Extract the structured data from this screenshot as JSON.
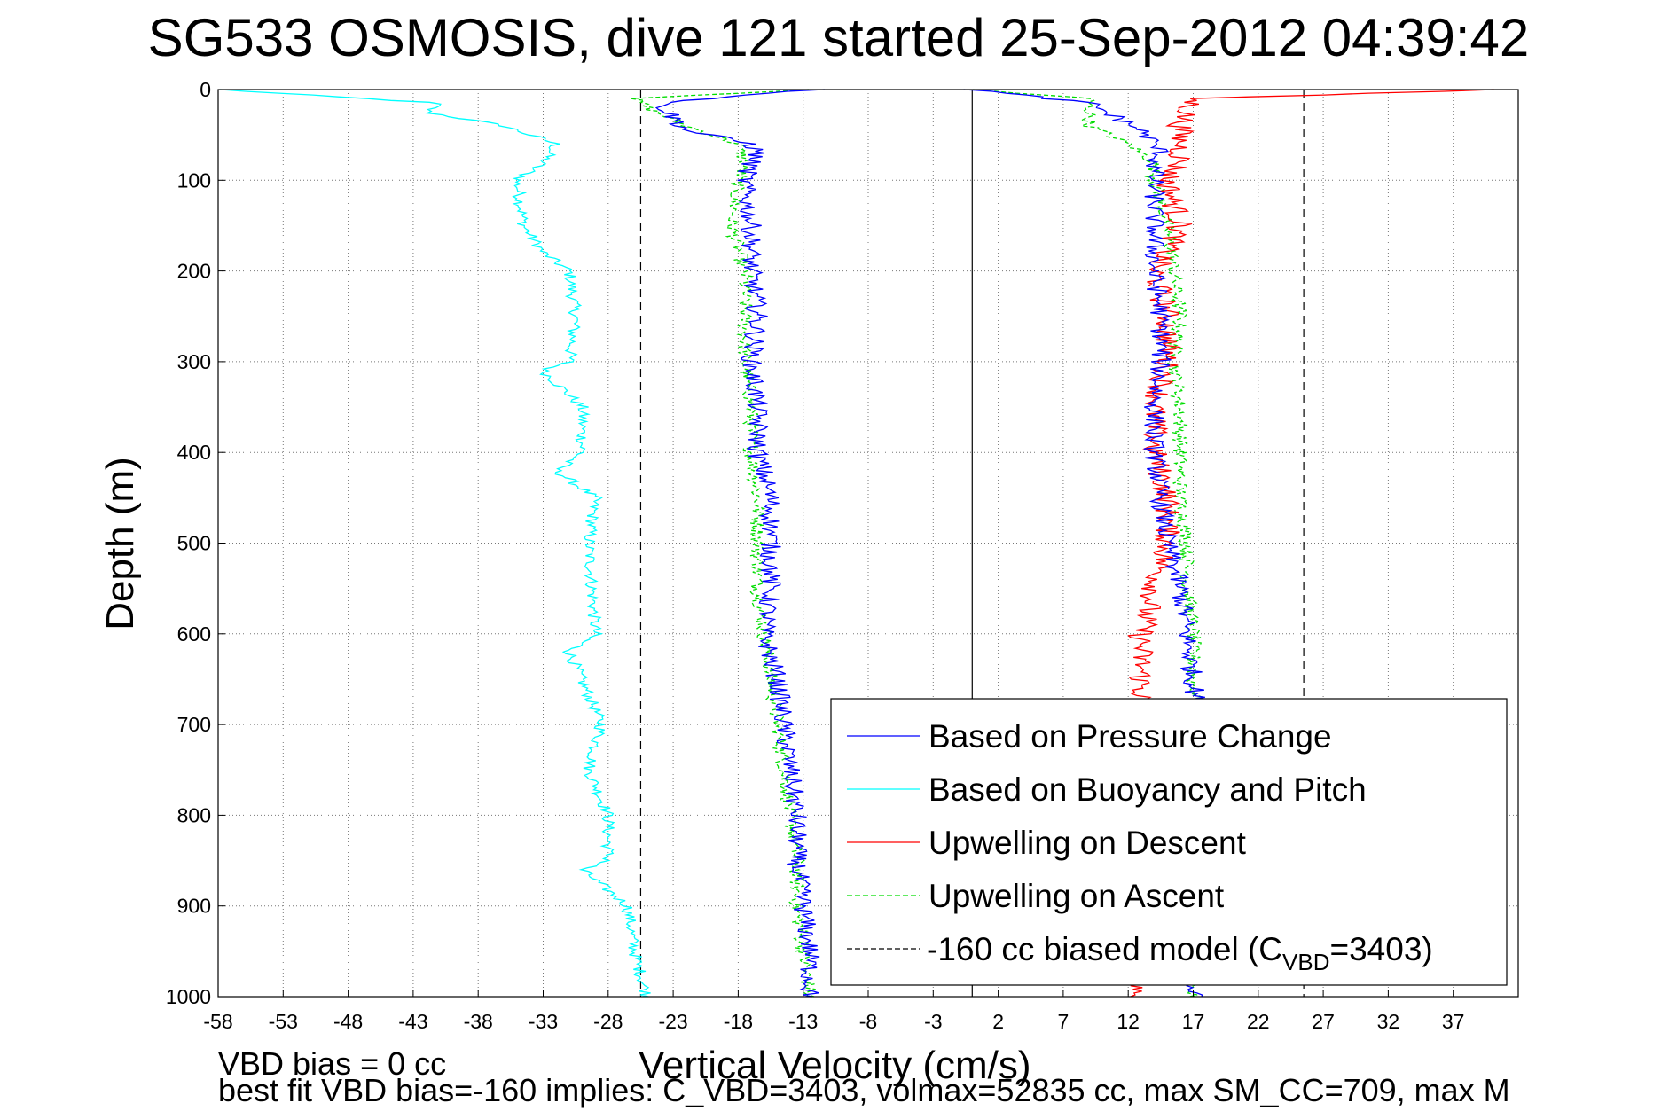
{
  "title": "SG533 OSMOSIS, dive 121 started 25-Sep-2012 04:39:42",
  "chart_data": {
    "type": "line",
    "xlabel": "Vertical Velocity (cm/s)",
    "ylabel": "Depth (m)",
    "xlim": [
      -58,
      42
    ],
    "ylim": [
      0,
      1000
    ],
    "y_reversed": true,
    "grid": true,
    "legend_position": "bottom-right",
    "x_ticks": [
      "-58",
      "-53",
      "-48",
      "-43",
      "-38",
      "-33",
      "-28",
      "-23",
      "-18",
      "-13",
      "-8",
      "-3",
      "2",
      "7",
      "12",
      "17",
      "22",
      "27",
      "32",
      "37"
    ],
    "y_ticks": [
      "0",
      "100",
      "200",
      "300",
      "400",
      "500",
      "600",
      "700",
      "800",
      "900",
      "1000"
    ],
    "zero_line_x": 0,
    "model_lines_x": [
      -25.5,
      25.5
    ],
    "series": [
      {
        "name": "Based on Pressure Change",
        "color": "#0000ff",
        "style": "solid",
        "depth": [
          0,
          15,
          30,
          45,
          60,
          70,
          80,
          100,
          150,
          200,
          250,
          300,
          350,
          400,
          450,
          500,
          550,
          600,
          650,
          700,
          750,
          800,
          850,
          900,
          950,
          1000
        ],
        "descent": [
          -12,
          -24,
          -23,
          -22,
          -17,
          -16.5,
          -17,
          -17.5,
          -17,
          -17,
          -16.5,
          -17,
          -16.5,
          -16.5,
          -15.5,
          -15.5,
          -15.5,
          -16,
          -15,
          -14.5,
          -14,
          -13.5,
          -13.5,
          -13,
          -12.5,
          -12.5
        ],
        "ascent": [
          0,
          9,
          11,
          13,
          14,
          14.5,
          14,
          14,
          14,
          14,
          14.5,
          14.5,
          14,
          14,
          14.5,
          15,
          16,
          16.5,
          17,
          17.5,
          17.5,
          17.5,
          17.5,
          17,
          17,
          17
        ]
      },
      {
        "name": "Based on Buoyancy and Pitch",
        "color": "#00ffff",
        "style": "solid",
        "depth": [
          0,
          15,
          25,
          40,
          60,
          80,
          100,
          150,
          180,
          200,
          250,
          300,
          310,
          350,
          400,
          420,
          450,
          500,
          600,
          620,
          700,
          750,
          800,
          850,
          860,
          900,
          950,
          1000
        ],
        "values": [
          -58,
          -41,
          -42,
          -36,
          -32,
          -33,
          -35,
          -34.5,
          -33,
          -31,
          -30.5,
          -31,
          -33,
          -30,
          -30,
          -32,
          -29,
          -29.5,
          -29,
          -31,
          -28.5,
          -29.5,
          -28,
          -28,
          -30,
          -26.5,
          -26,
          -25
        ]
      },
      {
        "name": "Upwelling on Descent",
        "color": "#ff0000",
        "style": "solid",
        "depth": [
          0,
          10,
          40,
          80,
          100,
          150,
          200,
          250,
          300,
          350,
          400,
          450,
          500,
          550,
          600,
          650,
          700,
          800,
          900,
          950,
          1000
        ],
        "values": [
          40,
          17,
          16,
          16,
          15,
          16,
          14,
          15,
          15,
          14,
          14,
          15,
          15,
          14,
          13,
          13,
          13,
          13,
          13,
          13,
          13
        ]
      },
      {
        "name": "Upwelling on Ascent",
        "color": "#00dd00",
        "style": "dashed",
        "depth": [
          0,
          10,
          20,
          40,
          60,
          80,
          100,
          150,
          200,
          250,
          300,
          350,
          400,
          450,
          500,
          550,
          600,
          650,
          700,
          750,
          800,
          850,
          900,
          950,
          1000
        ],
        "descent": [
          -12,
          -26,
          -25,
          -22,
          -18,
          -17.5,
          -18,
          -18.5,
          -17.5,
          -17.5,
          -17.5,
          -17,
          -17,
          -16.5,
          -16.5,
          -16.5,
          -16,
          -15.5,
          -15,
          -14.5,
          -14,
          -13.5,
          -13.5,
          -13,
          -12.5
        ],
        "ascent": [
          0,
          9,
          9,
          9,
          12,
          14,
          14,
          15,
          15.5,
          16,
          15.5,
          16,
          16,
          16,
          16.5,
          16.5,
          17,
          17,
          17.5,
          17.5,
          17.5,
          17.5,
          17,
          17,
          17
        ]
      },
      {
        "name": "-160 cc biased model (C_VBD=3403)",
        "color": "#000000",
        "style": "dashed"
      }
    ],
    "legend": {
      "items": [
        "Based on Pressure Change",
        "Based on Buoyancy and Pitch",
        "Upwelling on Descent",
        "Upwelling on Ascent"
      ],
      "model_prefix": "-160 cc biased model (C",
      "model_sub": "VBD",
      "model_suffix": "=3403)"
    }
  },
  "footer": {
    "line1": "VBD bias = 0 cc",
    "line2": "best fit VBD bias=-160 implies: C_VBD=3403, volmax=52835 cc, max SM_CC=709, max M"
  }
}
